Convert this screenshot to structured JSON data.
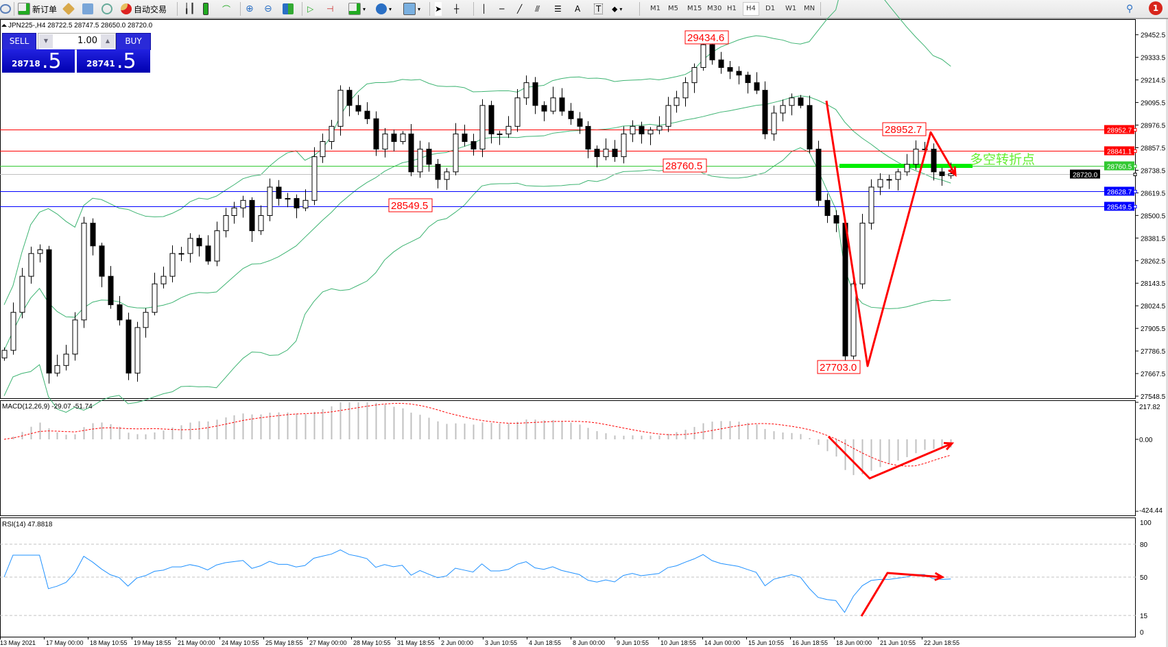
{
  "toolbar": {
    "new_order": "新订单",
    "auto_trading": "自动交易",
    "timeframes": [
      "M1",
      "M5",
      "M15",
      "M30",
      "H1",
      "H4",
      "D1",
      "W1",
      "MN"
    ],
    "active_timeframe": "H4",
    "notification_count": "1",
    "icons": [
      "zoom-icon",
      "new-order-icon",
      "market-watch-icon",
      "navigator-icon",
      "signals-icon",
      "auto-trading-icon",
      "bar-chart-icon",
      "candlestick-icon",
      "line-chart-icon",
      "zoom-in-icon",
      "zoom-out-icon",
      "tile-windows-icon",
      "auto-scroll-icon",
      "chart-shift-icon",
      "indicators-icon",
      "periods-icon",
      "templates-icon",
      "cursor-icon",
      "crosshair-icon",
      "vertical-line-icon",
      "horizontal-line-icon",
      "trendline-icon",
      "fibo-channel-icon",
      "fibo-retracement-icon",
      "text-icon",
      "text-label-icon",
      "arrows-icon",
      "search-icon",
      "notification-icon"
    ]
  },
  "chart": {
    "header": "JPN225-,H4  28722.5 28747.5 28650.0 28720.0",
    "one_click": {
      "sell_label": "SELL",
      "buy_label": "BUY",
      "lot": "1.00",
      "sell_price_main": "28718",
      "sell_price_pip": ".5",
      "buy_price_main": "28741",
      "buy_price_pip": ".5"
    },
    "price_axis": [
      "29452.5",
      "29333.5",
      "29214.5",
      "29095.5",
      "28976.5",
      "28857.5",
      "28738.5",
      "28619.5",
      "28500.5",
      "28381.5",
      "28262.5",
      "28143.5",
      "28024.5",
      "27905.5",
      "27786.5",
      "27667.5",
      "27548.5"
    ],
    "price_range": [
      27548.5,
      29452.5
    ],
    "levels": [
      {
        "label": "28952.7",
        "value": 28952.7,
        "color": "#ff0000"
      },
      {
        "label": "28841.1",
        "value": 28841.1,
        "color": "#ff0000"
      },
      {
        "label": "28760.5",
        "value": 28760.5,
        "color": "#32c832"
      },
      {
        "label": "28720.0",
        "value": 28720.0,
        "color": "#000000"
      },
      {
        "label": "28628.7",
        "value": 28628.7,
        "color": "#0000ff"
      },
      {
        "label": "28549.5",
        "value": 28549.5,
        "color": "#0000ff"
      }
    ],
    "annotations": {
      "high": "29434.6",
      "support": "28549.5",
      "pivot": "28760.5",
      "recent_high": "28952.7",
      "low": "27703.0",
      "pivot_text": "多空转折点"
    },
    "closes": [
      27790,
      27990,
      28180,
      28300,
      28320,
      27670,
      27710,
      27770,
      27950,
      28460,
      28340,
      28180,
      28030,
      27950,
      27670,
      27910,
      27990,
      28140,
      28180,
      28300,
      28300,
      28380,
      28340,
      28260,
      28420,
      28500,
      28540,
      28580,
      28420,
      28500,
      28650,
      28590,
      28590,
      28540,
      28580,
      28810,
      28890,
      28970,
      29160,
      29080,
      29050,
      29010,
      28850,
      28930,
      28890,
      28930,
      28730,
      28850,
      28770,
      28690,
      28730,
      28930,
      28890,
      28850,
      29080,
      28930,
      28930,
      28970,
      29120,
      29200,
      29080,
      29050,
      29120,
      29050,
      29010,
      28970,
      28850,
      28810,
      28850,
      28810,
      28930,
      28970,
      28930,
      28950,
      28970,
      29080,
      29120,
      29200,
      29280,
      29400,
      29320,
      29280,
      29260,
      29240,
      29200,
      29160,
      28930,
      29040,
      29080,
      29120,
      29080,
      28850,
      28580,
      28500,
      28460,
      27760,
      28140,
      28460,
      28650,
      28690,
      28690,
      28730,
      28770,
      28850,
      28850,
      28730,
      28710,
      28720
    ],
    "time_axis": [
      "13 May 2021",
      "17 May 00:00",
      "18 May 10:55",
      "19 May 18:55",
      "21 May 00:00",
      "24 May 10:55",
      "25 May 18:55",
      "27 May 00:00",
      "28 May 10:55",
      "31 May 18:55",
      "2 Jun 00:00",
      "3 Jun 10:55",
      "4 Jun 18:55",
      "8 Jun 00:00",
      "9 Jun 10:55",
      "10 Jun 18:55",
      "14 Jun 00:00",
      "15 Jun 10:55",
      "16 Jun 18:55",
      "18 Jun 00:00",
      "21 Jun 10:55",
      "22 Jun 18:55"
    ]
  },
  "macd": {
    "label": "MACD(12,26,9) -29.07 -51.74",
    "axis": [
      "217.82",
      "0.00",
      "-424.44"
    ],
    "range": [
      -424.44,
      217.82
    ]
  },
  "rsi": {
    "label": "RSI(14) 47.8818",
    "axis": [
      "100",
      "80",
      "50",
      "15",
      "0"
    ],
    "levels": [
      80,
      50,
      15
    ]
  },
  "colors": {
    "bands": "#3cb371",
    "annotation": "#ff0000",
    "pivot_bar": "#00ee00",
    "rsi_line": "#1e90ff",
    "macd_hist": "#c0c0c0",
    "macd_signal": "#ff0000"
  }
}
